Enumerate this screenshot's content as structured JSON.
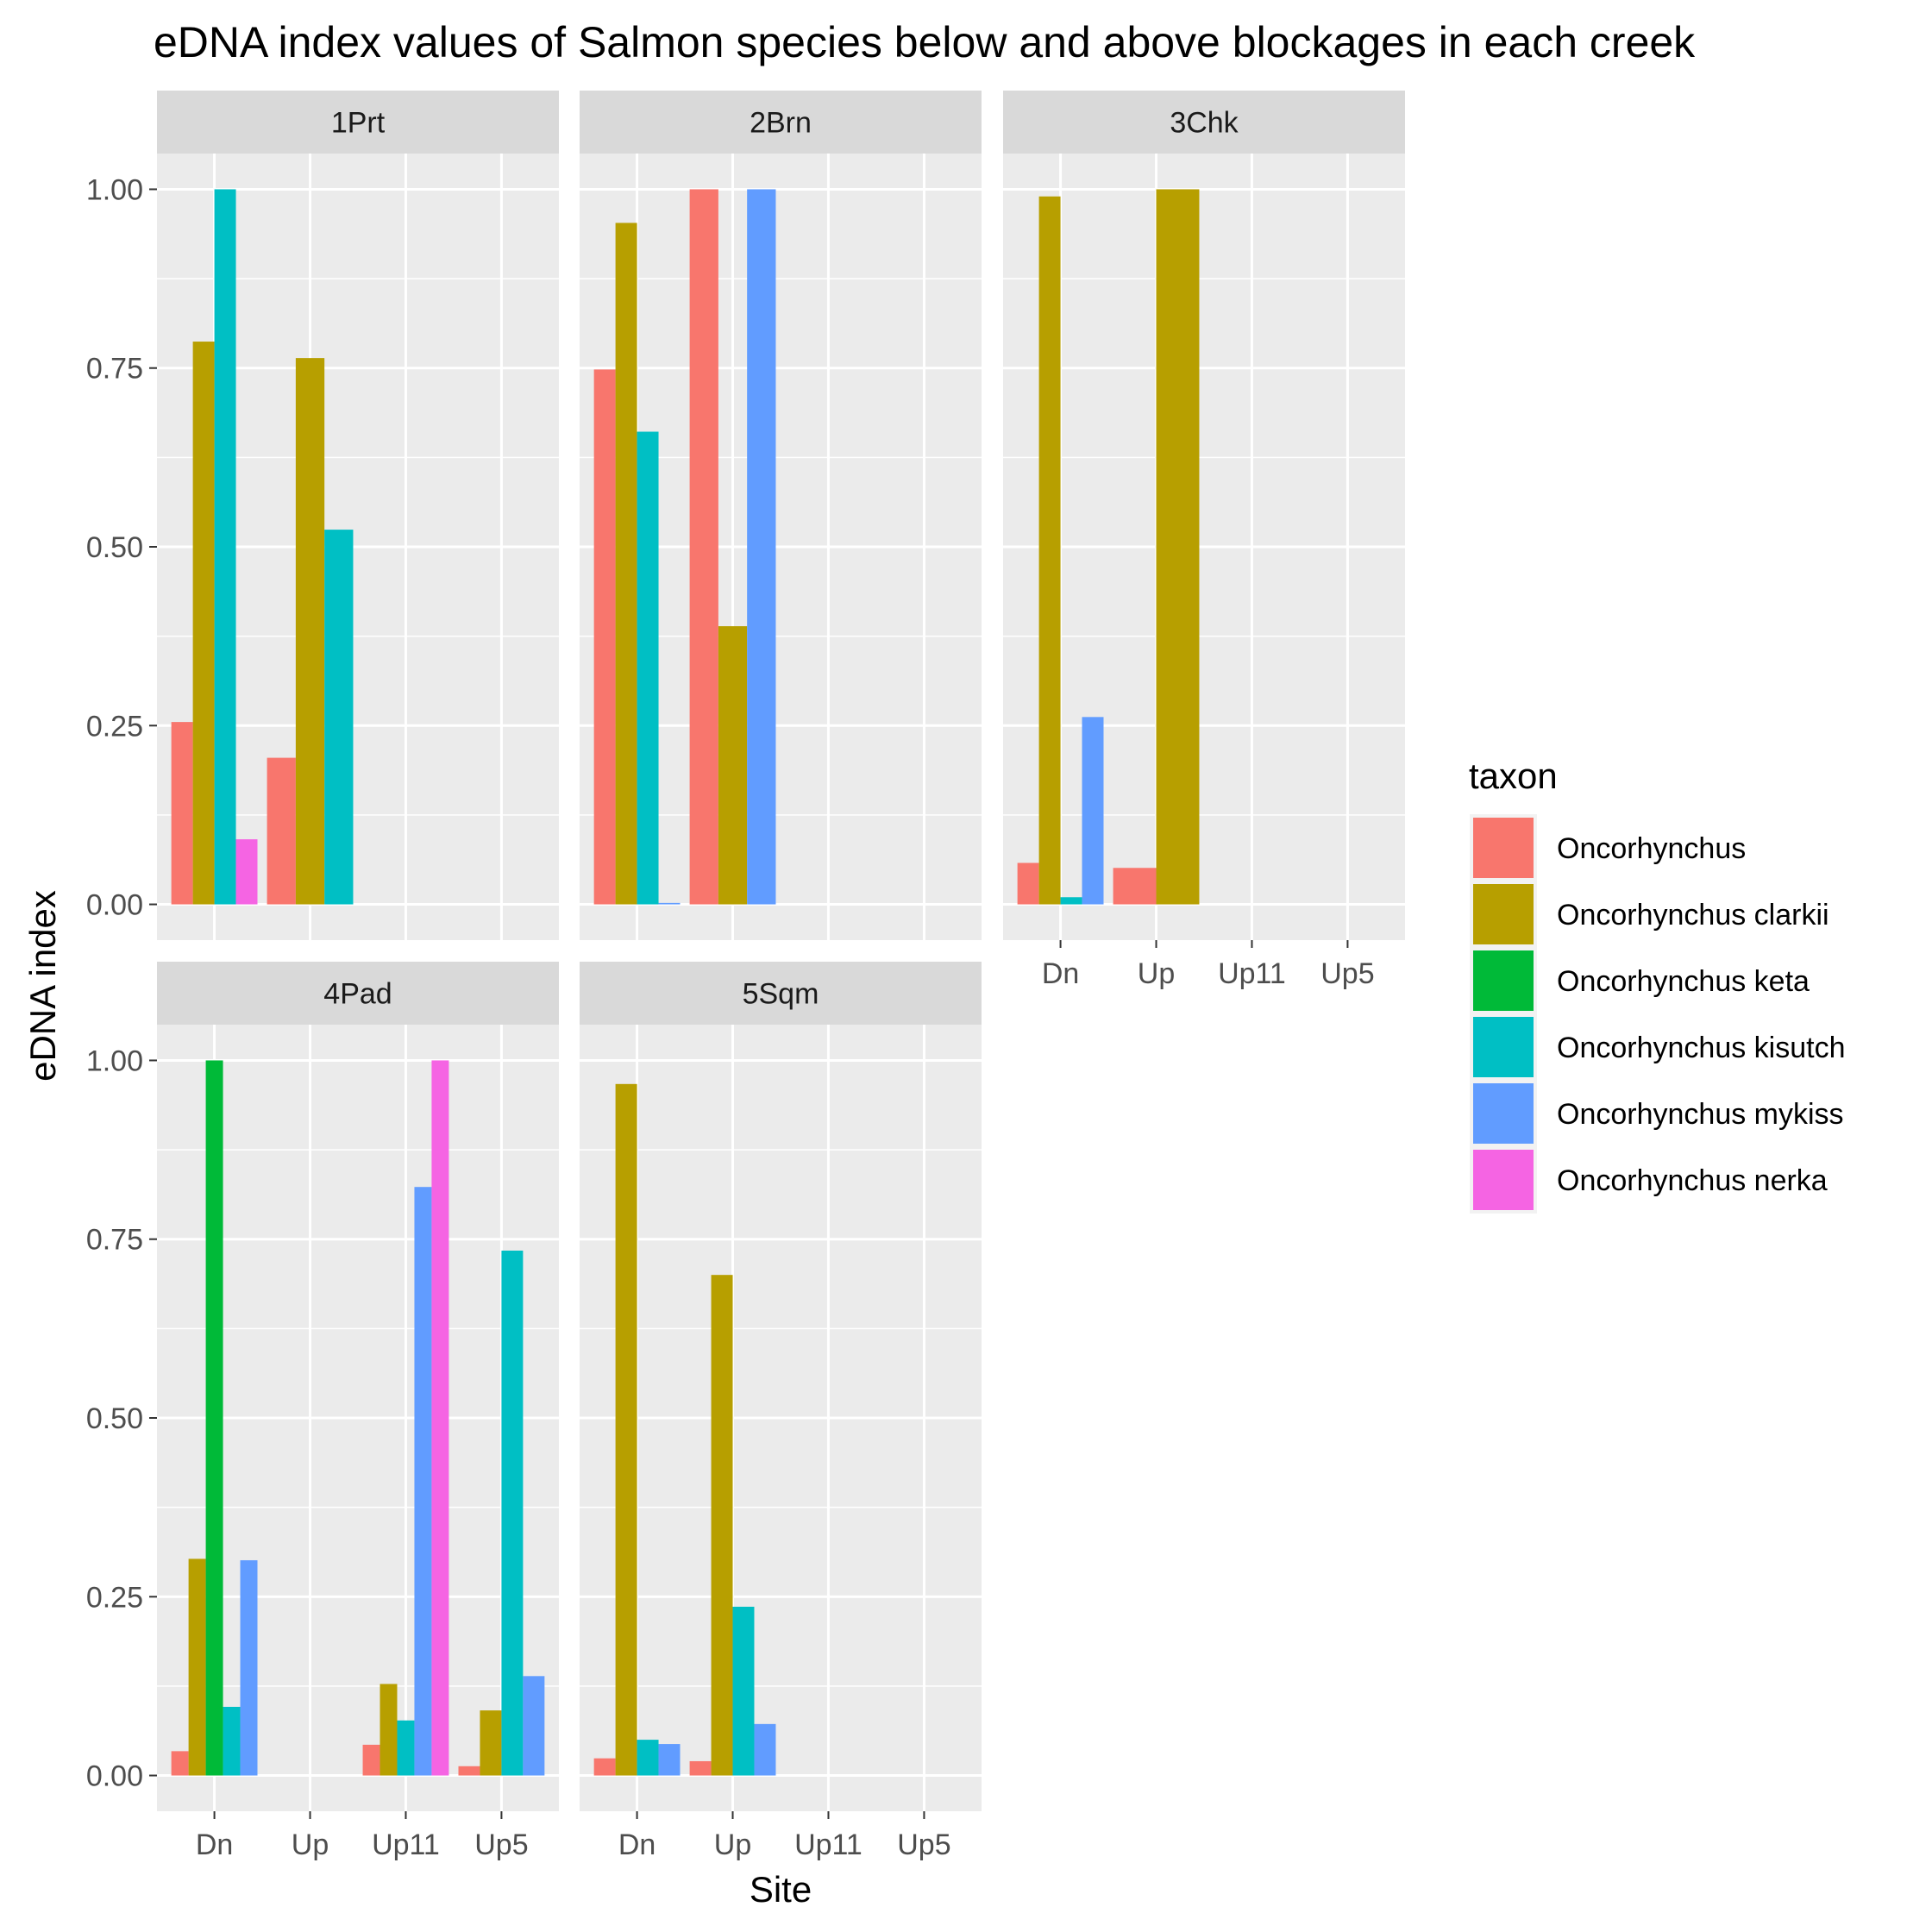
{
  "chart_data": {
    "type": "bar",
    "title": "eDNA index values of Salmon species below and above blockages in each creek",
    "xlabel": "Site",
    "ylabel": "eDNA index",
    "categories": [
      "Dn",
      "Up",
      "Up11",
      "Up5"
    ],
    "y_ticks": [
      "0.00",
      "0.25",
      "0.50",
      "0.75",
      "1.00"
    ],
    "y_tick_values": [
      0,
      0.25,
      0.5,
      0.75,
      1.0
    ],
    "ylim": [
      0,
      1.05
    ],
    "grid": true,
    "legend": {
      "title": "taxon",
      "placement": "right",
      "entries": [
        {
          "name": "Oncorhynchus",
          "color": "#F8766D"
        },
        {
          "name": "Oncorhynchus clarkii",
          "color": "#B79F00"
        },
        {
          "name": "Oncorhynchus keta",
          "color": "#00BA38"
        },
        {
          "name": "Oncorhynchus kisutch",
          "color": "#00BFC4"
        },
        {
          "name": "Oncorhynchus mykiss",
          "color": "#619CFF"
        },
        {
          "name": "Oncorhynchus nerka",
          "color": "#F564E3"
        }
      ]
    },
    "panels": [
      {
        "label": "1Prt",
        "groups": [
          {
            "site": "Dn",
            "bars": [
              {
                "taxon": "Oncorhynchus",
                "value": 0.255
              },
              {
                "taxon": "Oncorhynchus clarkii",
                "value": 0.787
              },
              {
                "taxon": "Oncorhynchus kisutch",
                "value": 1.0
              },
              {
                "taxon": "Oncorhynchus nerka",
                "value": 0.091
              }
            ]
          },
          {
            "site": "Up",
            "bars": [
              {
                "taxon": "Oncorhynchus",
                "value": 0.205
              },
              {
                "taxon": "Oncorhynchus clarkii",
                "value": 0.764
              },
              {
                "taxon": "Oncorhynchus kisutch",
                "value": 0.524
              }
            ]
          }
        ]
      },
      {
        "label": "2Brn",
        "groups": [
          {
            "site": "Dn",
            "bars": [
              {
                "taxon": "Oncorhynchus",
                "value": 0.748
              },
              {
                "taxon": "Oncorhynchus clarkii",
                "value": 0.953
              },
              {
                "taxon": "Oncorhynchus kisutch",
                "value": 0.661
              },
              {
                "taxon": "Oncorhynchus mykiss",
                "value": 0.002
              }
            ]
          },
          {
            "site": "Up",
            "bars": [
              {
                "taxon": "Oncorhynchus",
                "value": 1.0
              },
              {
                "taxon": "Oncorhynchus clarkii",
                "value": 0.389
              },
              {
                "taxon": "Oncorhynchus mykiss",
                "value": 1.0
              }
            ]
          }
        ]
      },
      {
        "label": "3Chk",
        "groups": [
          {
            "site": "Dn",
            "bars": [
              {
                "taxon": "Oncorhynchus",
                "value": 0.058
              },
              {
                "taxon": "Oncorhynchus clarkii",
                "value": 0.99
              },
              {
                "taxon": "Oncorhynchus kisutch",
                "value": 0.01
              },
              {
                "taxon": "Oncorhynchus mykiss",
                "value": 0.262
              }
            ]
          },
          {
            "site": "Up",
            "bars": [
              {
                "taxon": "Oncorhynchus",
                "value": 0.051
              },
              {
                "taxon": "Oncorhynchus clarkii",
                "value": 1.0
              }
            ]
          }
        ]
      },
      {
        "label": "4Pad",
        "groups": [
          {
            "site": "Dn",
            "bars": [
              {
                "taxon": "Oncorhynchus",
                "value": 0.034
              },
              {
                "taxon": "Oncorhynchus clarkii",
                "value": 0.303
              },
              {
                "taxon": "Oncorhynchus keta",
                "value": 1.0
              },
              {
                "taxon": "Oncorhynchus kisutch",
                "value": 0.096
              },
              {
                "taxon": "Oncorhynchus mykiss",
                "value": 0.301
              }
            ]
          },
          {
            "site": "Up11",
            "bars": [
              {
                "taxon": "Oncorhynchus",
                "value": 0.043
              },
              {
                "taxon": "Oncorhynchus clarkii",
                "value": 0.128
              },
              {
                "taxon": "Oncorhynchus kisutch",
                "value": 0.077
              },
              {
                "taxon": "Oncorhynchus mykiss",
                "value": 0.823
              },
              {
                "taxon": "Oncorhynchus nerka",
                "value": 1.0
              }
            ]
          },
          {
            "site": "Up5",
            "bars": [
              {
                "taxon": "Oncorhynchus",
                "value": 0.013
              },
              {
                "taxon": "Oncorhynchus clarkii",
                "value": 0.091
              },
              {
                "taxon": "Oncorhynchus kisutch",
                "value": 0.734
              },
              {
                "taxon": "Oncorhynchus mykiss",
                "value": 0.139
              }
            ]
          }
        ]
      },
      {
        "label": "5Sqm",
        "groups": [
          {
            "site": "Dn",
            "bars": [
              {
                "taxon": "Oncorhynchus",
                "value": 0.024
              },
              {
                "taxon": "Oncorhynchus clarkii",
                "value": 0.967
              },
              {
                "taxon": "Oncorhynchus kisutch",
                "value": 0.05
              },
              {
                "taxon": "Oncorhynchus mykiss",
                "value": 0.044
              }
            ]
          },
          {
            "site": "Up",
            "bars": [
              {
                "taxon": "Oncorhynchus",
                "value": 0.02
              },
              {
                "taxon": "Oncorhynchus clarkii",
                "value": 0.7
              },
              {
                "taxon": "Oncorhynchus kisutch",
                "value": 0.236
              },
              {
                "taxon": "Oncorhynchus mykiss",
                "value": 0.072
              }
            ]
          }
        ]
      }
    ]
  }
}
